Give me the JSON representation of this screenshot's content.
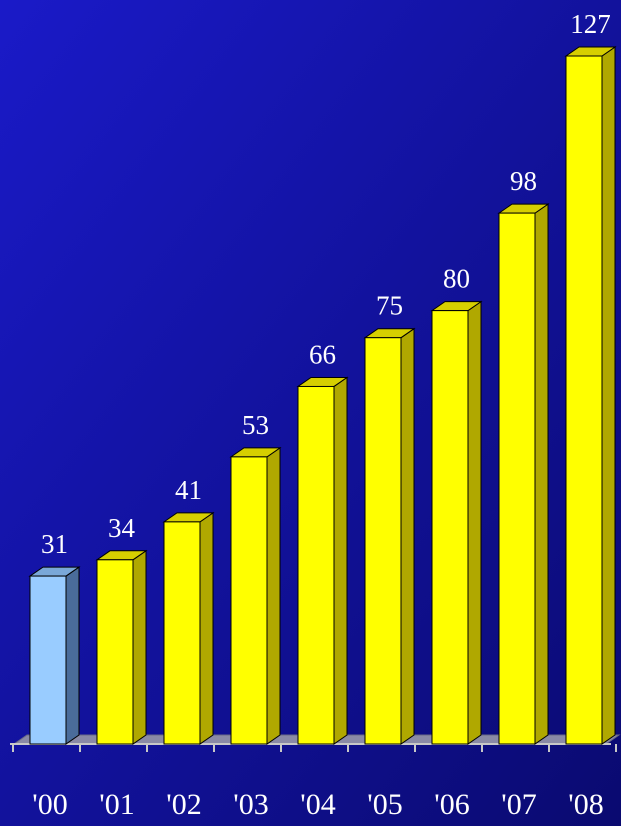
{
  "chart_data": {
    "type": "bar",
    "categories": [
      "'00",
      "'01",
      "'02",
      "'03",
      "'04",
      "'05",
      "'06",
      "'07",
      "'08"
    ],
    "values": [
      31,
      34,
      41,
      53,
      66,
      75,
      80,
      98,
      127
    ],
    "highlight_index": 0,
    "title": "",
    "xlabel": "",
    "ylabel": "",
    "ylim": [
      0,
      127
    ],
    "grid": false,
    "legend": "none",
    "data_labels": true,
    "style": "3d-columns"
  },
  "colors": {
    "background_top_left": "#1a1ac8",
    "background_bottom_right": "#0a0a70",
    "bar_front": "#ffff00",
    "bar_side": "#b0a800",
    "bar_top": "#d6cf00",
    "highlight_front": "#99ccff",
    "highlight_side": "#4a6c9a",
    "highlight_top": "#7aa8d8",
    "floor": "#8a8aa6",
    "axis": "#c8c8c8",
    "label_text": "#ffffff"
  }
}
